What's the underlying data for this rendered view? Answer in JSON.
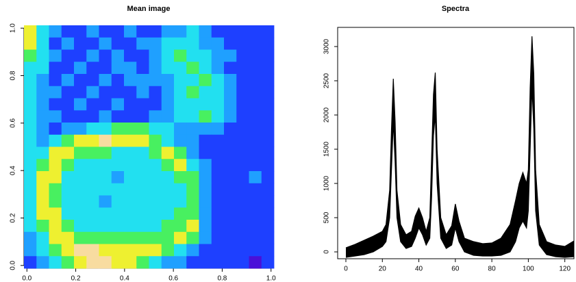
{
  "chart_data": [
    {
      "type": "heatmap",
      "title": "Mean image",
      "xlim": [
        -0.012,
        1.012
      ],
      "ylim": [
        -0.012,
        1.012
      ],
      "xticks": [
        {
          "value": 0,
          "label": "0.0"
        },
        0.2,
        0.4,
        0.6,
        0.8,
        {
          "value": 1,
          "label": "1.0"
        }
      ],
      "yticks": [
        {
          "value": 0,
          "label": "0.0"
        },
        0.2,
        0.4,
        0.6,
        0.8,
        {
          "value": 1,
          "label": "1.0"
        }
      ],
      "colors": [
        "#4a10d8",
        "#1e40ff",
        "#1fa0ff",
        "#22e0f0",
        "#48f060",
        "#eef030",
        "#f8dca0"
      ],
      "z": [
        [
          5,
          3,
          2,
          1,
          1,
          2,
          1,
          1,
          2,
          1,
          1,
          2,
          2,
          3,
          2,
          1,
          1,
          1,
          1,
          1
        ],
        [
          5,
          3,
          1,
          2,
          1,
          1,
          2,
          1,
          1,
          2,
          2,
          3,
          3,
          3,
          2,
          2,
          1,
          1,
          1,
          1
        ],
        [
          4,
          3,
          2,
          1,
          1,
          2,
          1,
          2,
          1,
          1,
          2,
          3,
          4,
          3,
          3,
          2,
          2,
          1,
          1,
          1
        ],
        [
          3,
          3,
          1,
          1,
          2,
          1,
          1,
          2,
          2,
          1,
          2,
          3,
          3,
          4,
          3,
          2,
          1,
          1,
          1,
          1
        ],
        [
          3,
          2,
          1,
          2,
          1,
          1,
          2,
          1,
          2,
          2,
          2,
          2,
          3,
          3,
          4,
          3,
          2,
          1,
          1,
          1
        ],
        [
          3,
          2,
          2,
          1,
          1,
          2,
          1,
          1,
          1,
          2,
          1,
          2,
          3,
          4,
          3,
          3,
          2,
          1,
          1,
          1
        ],
        [
          3,
          2,
          1,
          1,
          2,
          1,
          1,
          2,
          1,
          1,
          1,
          2,
          3,
          3,
          3,
          3,
          2,
          1,
          1,
          1
        ],
        [
          3,
          2,
          2,
          1,
          1,
          1,
          2,
          1,
          1,
          1,
          2,
          2,
          3,
          3,
          4,
          3,
          2,
          1,
          1,
          1
        ],
        [
          3,
          2,
          1,
          2,
          2,
          3,
          3,
          4,
          4,
          4,
          3,
          3,
          2,
          2,
          2,
          2,
          1,
          1,
          1,
          1
        ],
        [
          3,
          2,
          3,
          4,
          5,
          5,
          6,
          5,
          5,
          5,
          4,
          3,
          2,
          2,
          1,
          1,
          1,
          1,
          1,
          1
        ],
        [
          3,
          3,
          5,
          5,
          4,
          4,
          4,
          3,
          3,
          3,
          4,
          5,
          4,
          2,
          1,
          1,
          1,
          1,
          1,
          1
        ],
        [
          3,
          4,
          5,
          4,
          3,
          3,
          3,
          3,
          3,
          3,
          3,
          4,
          5,
          3,
          2,
          1,
          1,
          1,
          1,
          1
        ],
        [
          3,
          5,
          5,
          3,
          3,
          3,
          3,
          2,
          3,
          3,
          3,
          3,
          4,
          4,
          2,
          1,
          1,
          1,
          2,
          1
        ],
        [
          3,
          5,
          4,
          3,
          3,
          3,
          3,
          3,
          3,
          3,
          3,
          3,
          3,
          4,
          2,
          1,
          1,
          1,
          1,
          1
        ],
        [
          3,
          5,
          4,
          3,
          3,
          3,
          2,
          3,
          3,
          3,
          3,
          3,
          3,
          4,
          2,
          1,
          1,
          1,
          1,
          1
        ],
        [
          3,
          5,
          5,
          3,
          3,
          3,
          3,
          3,
          3,
          3,
          3,
          3,
          4,
          4,
          2,
          1,
          1,
          1,
          1,
          1
        ],
        [
          3,
          4,
          5,
          4,
          3,
          3,
          3,
          3,
          3,
          3,
          3,
          4,
          4,
          5,
          2,
          1,
          1,
          1,
          1,
          1
        ],
        [
          2,
          3,
          5,
          5,
          4,
          4,
          4,
          4,
          4,
          4,
          4,
          4,
          5,
          4,
          2,
          1,
          1,
          1,
          1,
          1
        ],
        [
          2,
          3,
          4,
          5,
          6,
          6,
          5,
          5,
          5,
          5,
          5,
          4,
          3,
          2,
          1,
          1,
          1,
          1,
          1,
          1
        ],
        [
          1,
          2,
          3,
          4,
          5,
          6,
          6,
          5,
          5,
          4,
          3,
          2,
          2,
          1,
          1,
          1,
          1,
          1,
          0,
          1
        ]
      ]
    },
    {
      "type": "line",
      "title": "Spectra",
      "xlim": [
        -4.5,
        125
      ],
      "ylim": [
        -100,
        3280
      ],
      "xticks": [
        0,
        20,
        40,
        60,
        80,
        100,
        120
      ],
      "yticks": [
        0,
        500,
        1000,
        1500,
        2000,
        2500,
        3000
      ],
      "x": [
        0,
        5,
        10,
        15,
        20,
        22,
        24,
        25,
        26,
        27,
        28,
        30,
        33,
        36,
        38,
        40,
        42,
        44,
        46,
        47,
        48,
        49,
        50,
        52,
        55,
        58,
        60,
        62,
        65,
        70,
        75,
        80,
        85,
        90,
        93,
        95,
        97,
        99,
        100,
        101,
        102,
        103,
        104,
        106,
        110,
        115,
        120,
        125
      ],
      "series": [
        {
          "color": "#000000",
          "values": [
            60,
            110,
            170,
            230,
            300,
            400,
            900,
            1800,
            2530,
            1900,
            900,
            400,
            250,
            300,
            520,
            640,
            500,
            300,
            500,
            1400,
            2300,
            2620,
            1500,
            500,
            250,
            380,
            700,
            450,
            200,
            150,
            120,
            130,
            200,
            400,
            750,
            1000,
            1160,
            1000,
            1200,
            2400,
            3150,
            2600,
            1200,
            400,
            150,
            100,
            80,
            160
          ]
        },
        {
          "color": "#000000",
          "values": [
            -80,
            -60,
            -40,
            0,
            80,
            150,
            500,
            1200,
            1900,
            1300,
            500,
            150,
            50,
            80,
            200,
            350,
            250,
            100,
            200,
            800,
            1700,
            2000,
            1000,
            200,
            50,
            100,
            350,
            150,
            0,
            -50,
            -60,
            -60,
            -50,
            0,
            150,
            350,
            450,
            350,
            600,
            1500,
            2400,
            1800,
            600,
            100,
            -40,
            -70,
            -80,
            -70
          ]
        }
      ]
    }
  ]
}
